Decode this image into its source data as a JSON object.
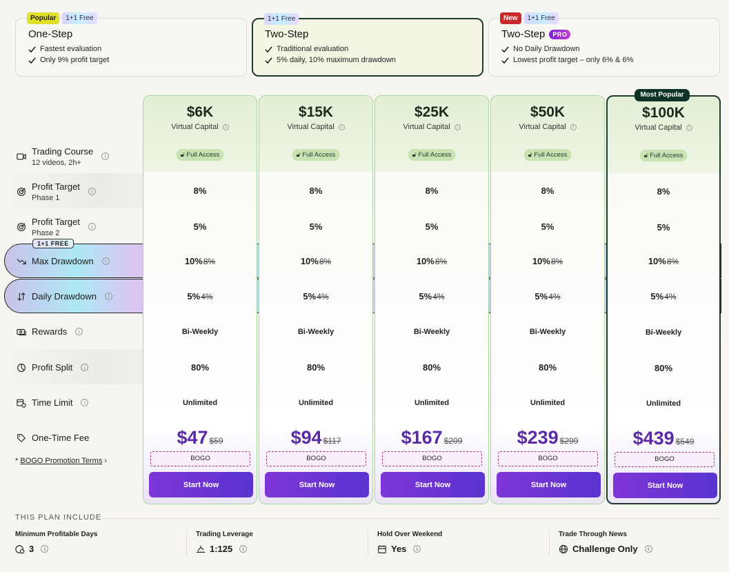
{
  "plans": [
    {
      "name": "One-Step",
      "badges": [
        "Popular",
        "1+1 Free"
      ],
      "features": [
        "Fastest evaluation",
        "Only 9% profit target"
      ]
    },
    {
      "name": "Two-Step",
      "badges": [
        "1+1 Free"
      ],
      "features": [
        "Traditional evaluation",
        "5% daily, 10% maximum drawdown"
      ]
    },
    {
      "name": "Two-Step",
      "pro": "PRO",
      "badges": [
        "New",
        "1+1 Free"
      ],
      "features": [
        "No Daily Drawdown",
        "Lowest profit target – only 6% & 6%"
      ]
    }
  ],
  "rows": {
    "trading_course": {
      "label": "Trading Course",
      "sub": "12 videos, 2h+"
    },
    "profit_target_1": {
      "label": "Profit Target",
      "sub": "Phase 1"
    },
    "profit_target_2": {
      "label": "Profit Target",
      "sub": "Phase 2"
    },
    "max_drawdown": {
      "label": "Max Drawdown",
      "tag": "1+1 FREE"
    },
    "daily_drawdown": {
      "label": "Daily Drawdown"
    },
    "rewards": {
      "label": "Rewards"
    },
    "profit_split": {
      "label": "Profit Split"
    },
    "time_limit": {
      "label": "Time Limit"
    },
    "fee": {
      "label": "One-Time Fee"
    }
  },
  "bogo_terms": {
    "prefix": "* ",
    "link": "BOGO Promotion Terms",
    "arrow": "›"
  },
  "most_popular": "Most Popular",
  "virtual_capital": "Virtual Capital",
  "full_access": "Full Access",
  "bogo_label": "BOGO",
  "start_label": "Start Now",
  "accounts": [
    {
      "size": "$6K",
      "pt1": "8%",
      "pt2": "5%",
      "max_dd": "10%",
      "max_dd_old": "8%",
      "daily_dd": "5%",
      "daily_dd_old": "4%",
      "rewards": "Bi-Weekly",
      "split": "80%",
      "time": "Unlimited",
      "price": "$47",
      "old_price": "$59"
    },
    {
      "size": "$15K",
      "pt1": "8%",
      "pt2": "5%",
      "max_dd": "10%",
      "max_dd_old": "8%",
      "daily_dd": "5%",
      "daily_dd_old": "4%",
      "rewards": "Bi-Weekly",
      "split": "80%",
      "time": "Unlimited",
      "price": "$94",
      "old_price": "$117"
    },
    {
      "size": "$25K",
      "pt1": "8%",
      "pt2": "5%",
      "max_dd": "10%",
      "max_dd_old": "8%",
      "daily_dd": "5%",
      "daily_dd_old": "4%",
      "rewards": "Bi-Weekly",
      "split": "80%",
      "time": "Unlimited",
      "price": "$167",
      "old_price": "$209"
    },
    {
      "size": "$50K",
      "pt1": "8%",
      "pt2": "5%",
      "max_dd": "10%",
      "max_dd_old": "8%",
      "daily_dd": "5%",
      "daily_dd_old": "4%",
      "rewards": "Bi-Weekly",
      "split": "80%",
      "time": "Unlimited",
      "price": "$239",
      "old_price": "$299"
    },
    {
      "size": "$100K",
      "pt1": "8%",
      "pt2": "5%",
      "max_dd": "10%",
      "max_dd_old": "8%",
      "daily_dd": "5%",
      "daily_dd_old": "4%",
      "rewards": "Bi-Weekly",
      "split": "80%",
      "time": "Unlimited",
      "price": "$439",
      "old_price": "$549"
    }
  ],
  "includes": {
    "title": "THIS PLAN INCLUDE",
    "items": [
      {
        "key": "Minimum Profitable Days",
        "value": "3"
      },
      {
        "key": "Trading Leverage",
        "value": "1:125"
      },
      {
        "key": "Hold Over Weekend",
        "value": "Yes"
      },
      {
        "key": "Trade Through News",
        "value": "Challenge Only"
      }
    ]
  },
  "colors": {
    "accent": "#5b2aa6",
    "selected_border": "#1e3a2e",
    "column_border": "#a8d8a2"
  }
}
